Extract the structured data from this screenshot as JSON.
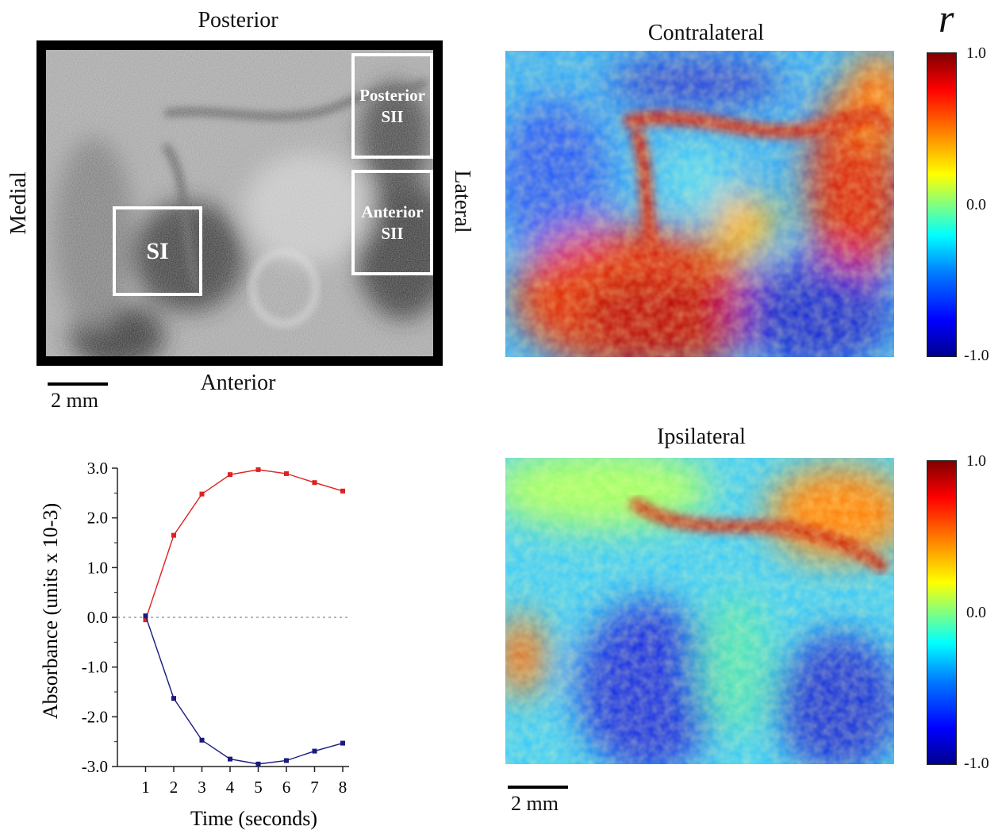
{
  "cortex_panel": {
    "orientation": {
      "top": "Posterior",
      "bottom": "Anterior",
      "left": "Medial",
      "right": "Lateral"
    },
    "regions": [
      {
        "id": "si",
        "lines": [
          "SI"
        ]
      },
      {
        "id": "posterior-sii",
        "lines": [
          "Posterior",
          "SII"
        ]
      },
      {
        "id": "anterior-sii",
        "lines": [
          "Anterior",
          "SII"
        ]
      }
    ],
    "scale_bar_label": "2 mm"
  },
  "correlation_maps": {
    "symbol": "r",
    "maps": [
      {
        "id": "contralateral",
        "title": "Contralateral"
      },
      {
        "id": "ipsilateral",
        "title": "Ipsilateral"
      }
    ],
    "colorbar_ticks": [
      "1.0",
      "0.0",
      "-1.0"
    ],
    "colormap": [
      "#00008f",
      "#0000ff",
      "#00ffff",
      "#ffff00",
      "#ff0000",
      "#800000"
    ],
    "scale_bar_label": "2 mm"
  },
  "chart_data": {
    "type": "line",
    "x": [
      1,
      2,
      3,
      4,
      5,
      6,
      7,
      8
    ],
    "series": [
      {
        "values": [
          -0.05,
          1.65,
          2.48,
          2.87,
          2.97,
          2.89,
          2.71,
          2.54
        ],
        "color": "#dd2222"
      },
      {
        "values": [
          0.03,
          -1.63,
          -2.47,
          -2.85,
          -2.95,
          -2.88,
          -2.69,
          -2.53
        ],
        "color": "#1a1a80"
      }
    ],
    "xlabel": "Time (seconds)",
    "ylabel": "Absorbance (units x 10-3)",
    "xticks": [
      "1",
      "2",
      "3",
      "4",
      "5",
      "6",
      "7",
      "8"
    ],
    "yticks": [
      "3.0",
      "2.0",
      "1.0",
      "0.0",
      "-1.0",
      "-2.0",
      "-3.0"
    ],
    "ylim": [
      -3.0,
      3.0
    ],
    "xlim": [
      0,
      8
    ],
    "zero_line": "dotted"
  }
}
